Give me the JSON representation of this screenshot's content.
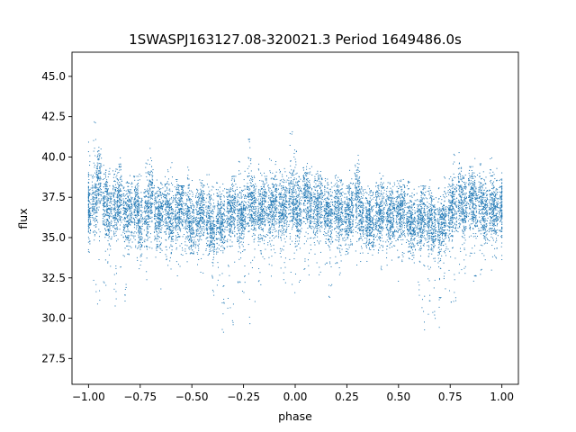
{
  "chart_data": {
    "type": "scatter",
    "title": "1SWASPJ163127.08-320021.3 Period 1649486.0s",
    "xlabel": "phase",
    "ylabel": "flux",
    "xlim": [
      -1.08,
      1.08
    ],
    "ylim": [
      25.9,
      46.5
    ],
    "x_ticks": [
      -1.0,
      -0.75,
      -0.5,
      -0.25,
      0.0,
      0.25,
      0.5,
      0.75,
      1.0
    ],
    "x_tick_labels": [
      "−1.00",
      "−0.75",
      "−0.50",
      "−0.25",
      "0.00",
      "0.25",
      "0.50",
      "0.75",
      "1.00"
    ],
    "y_ticks": [
      27.5,
      30.0,
      32.5,
      35.0,
      37.5,
      40.0,
      42.5,
      45.0
    ],
    "y_tick_labels": [
      "27.5",
      "30.0",
      "32.5",
      "35.0",
      "37.5",
      "40.0",
      "42.5",
      "45.0"
    ],
    "grid": false,
    "legend": "none",
    "marker_color": "#1f77b4",
    "series": [
      {
        "description_points": "Dense band of points between flux ~34 and ~39 across phase -1 to 1, with vertical streaks up to ~42 and down to ~28.5, mirrored at phase 0",
        "x": [
          -1.0,
          -0.97,
          -0.95,
          -0.92,
          -0.9,
          -0.87,
          -0.85,
          -0.82,
          -0.8,
          -0.77,
          -0.75,
          -0.72,
          -0.7,
          -0.67,
          -0.65,
          -0.62,
          -0.6,
          -0.57,
          -0.55,
          -0.52,
          -0.5,
          -0.47,
          -0.45,
          -0.42,
          -0.4,
          -0.37,
          -0.35,
          -0.32,
          -0.3,
          -0.27,
          -0.25,
          -0.22,
          -0.2,
          -0.17,
          -0.15,
          -0.12,
          -0.1,
          -0.07,
          -0.05,
          -0.02,
          0.0,
          0.02,
          0.05,
          0.07,
          0.1,
          0.12,
          0.15,
          0.17,
          0.2,
          0.22,
          0.25,
          0.27,
          0.3,
          0.32,
          0.35,
          0.37,
          0.4,
          0.42,
          0.45,
          0.47,
          0.5,
          0.52,
          0.55,
          0.57,
          0.6,
          0.62,
          0.65,
          0.67,
          0.7,
          0.72,
          0.75,
          0.77,
          0.8,
          0.82,
          0.85,
          0.87,
          0.9,
          0.92,
          0.95,
          0.97,
          1.0
        ],
        "y": [
          36.8,
          37.2,
          38.6,
          37.0,
          36.5,
          36.9,
          37.4,
          36.2,
          36.7,
          37.1,
          36.0,
          36.4,
          37.8,
          36.3,
          36.6,
          36.8,
          36.1,
          36.5,
          37.0,
          36.2,
          35.9,
          36.3,
          36.7,
          36.0,
          35.6,
          36.1,
          35.8,
          36.4,
          36.9,
          36.2,
          36.5,
          37.3,
          36.8,
          36.4,
          37.0,
          36.6,
          37.2,
          36.8,
          36.9,
          37.5,
          37.1,
          36.6,
          37.6,
          36.9,
          36.8,
          37.2,
          36.7,
          36.3,
          36.9,
          36.4,
          36.2,
          36.6,
          37.7,
          36.3,
          36.1,
          35.9,
          36.4,
          36.8,
          36.1,
          36.3,
          36.5,
          36.7,
          36.2,
          35.8,
          36.0,
          36.4,
          35.9,
          35.7,
          35.5,
          36.1,
          36.6,
          37.0,
          37.5,
          36.8,
          37.4,
          36.9,
          37.1,
          36.5,
          37.0,
          36.7,
          36.8
        ],
        "y_min": [
          34.0,
          31.5,
          30.8,
          32.0,
          33.2,
          30.7,
          32.5,
          31.0,
          33.8,
          33.0,
          32.8,
          31.8,
          34.2,
          33.6,
          31.4,
          33.0,
          32.6,
          31.6,
          32.9,
          33.4,
          34.0,
          33.1,
          32.4,
          33.7,
          31.0,
          29.8,
          29.0,
          30.5,
          28.8,
          31.8,
          30.0,
          29.3,
          30.5,
          32.0,
          33.1,
          32.6,
          33.8,
          32.8,
          32.1,
          31.6,
          30.4,
          31.0,
          33.0,
          32.2,
          33.4,
          32.0,
          33.2,
          31.0,
          31.5,
          32.4,
          33.6,
          34.0,
          32.5,
          33.0,
          33.5,
          33.8,
          34.0,
          32.8,
          33.2,
          33.6,
          31.6,
          33.0,
          33.4,
          32.6,
          30.6,
          29.2,
          30.0,
          29.0,
          28.6,
          31.8,
          30.4,
          30.8,
          32.6,
          31.2,
          33.8,
          31.6,
          32.4,
          33.0,
          32.2,
          33.4,
          33.6
        ],
        "y_max": [
          41.0,
          42.2,
          40.6,
          39.6,
          39.4,
          39.8,
          40.2,
          38.6,
          39.0,
          38.8,
          39.4,
          40.2,
          40.6,
          38.6,
          38.4,
          39.2,
          39.8,
          38.6,
          38.2,
          39.4,
          38.6,
          38.0,
          38.6,
          39.0,
          38.2,
          38.4,
          38.6,
          38.0,
          38.8,
          39.8,
          40.6,
          41.2,
          38.8,
          39.6,
          39.0,
          40.4,
          40.0,
          39.2,
          39.4,
          41.6,
          40.6,
          39.0,
          39.6,
          39.4,
          39.0,
          39.2,
          38.8,
          38.4,
          39.0,
          38.6,
          38.2,
          39.2,
          40.8,
          38.4,
          38.6,
          38.0,
          38.4,
          39.0,
          38.6,
          38.4,
          38.8,
          39.0,
          38.6,
          38.0,
          38.4,
          38.2,
          38.8,
          38.0,
          38.2,
          39.0,
          38.8,
          40.4,
          40.8,
          39.4,
          39.4,
          40.0,
          39.8,
          39.0,
          40.2,
          39.8,
          39.2
        ]
      }
    ]
  }
}
